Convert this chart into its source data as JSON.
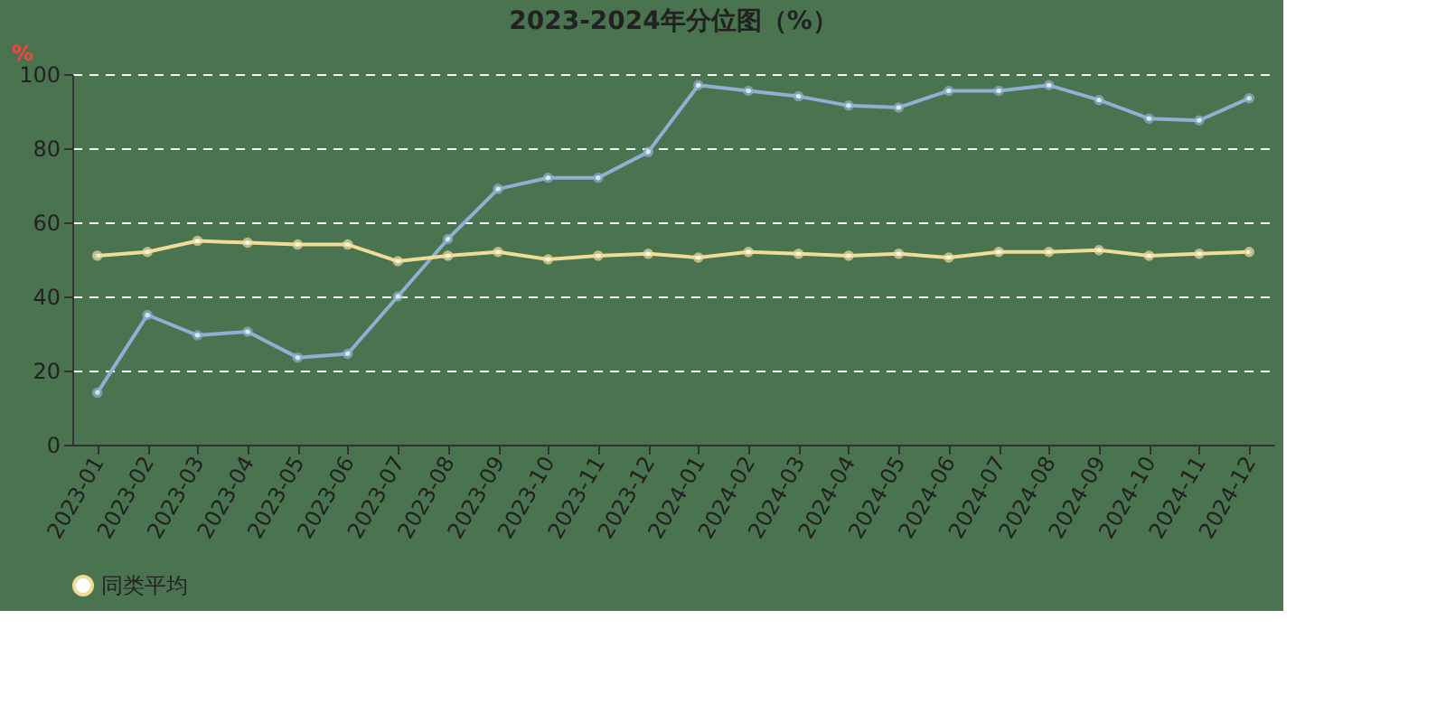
{
  "chart_data": {
    "type": "line",
    "title": "2023-2024年分位图（%）",
    "ylabel": "%",
    "categories": [
      "2023-01",
      "2023-02",
      "2023-03",
      "2023-04",
      "2023-05",
      "2023-06",
      "2023-07",
      "2023-08",
      "2023-09",
      "2023-10",
      "2023-11",
      "2023-12",
      "2024-01",
      "2024-02",
      "2024-03",
      "2024-04",
      "2024-05",
      "2024-06",
      "2024-07",
      "2024-08",
      "2024-09",
      "2024-10",
      "2024-11",
      "2024-12"
    ],
    "series": [
      {
        "color": "#8fb0d2",
        "values": [
          14,
          35,
          29.5,
          30.5,
          23.5,
          24.5,
          40,
          55.5,
          69,
          72,
          72,
          79,
          97,
          95.5,
          94,
          91.5,
          91,
          95.5,
          95.5,
          97,
          93,
          88,
          87.5,
          93.5
        ]
      },
      {
        "name": "同类平均",
        "color": "#f0dc96",
        "values": [
          51,
          52,
          55,
          54.5,
          54,
          54,
          49.5,
          51,
          52,
          50,
          51,
          51.5,
          50.5,
          52,
          51.5,
          51,
          51.5,
          50.5,
          52,
          52,
          52.5,
          51,
          51.5,
          52
        ]
      }
    ],
    "ylim": [
      0,
      100
    ],
    "yticks": [
      0,
      20,
      40,
      60,
      80,
      100
    ],
    "grid": "y",
    "legend": "bottom",
    "marker": "circle",
    "line_style": "solid"
  }
}
